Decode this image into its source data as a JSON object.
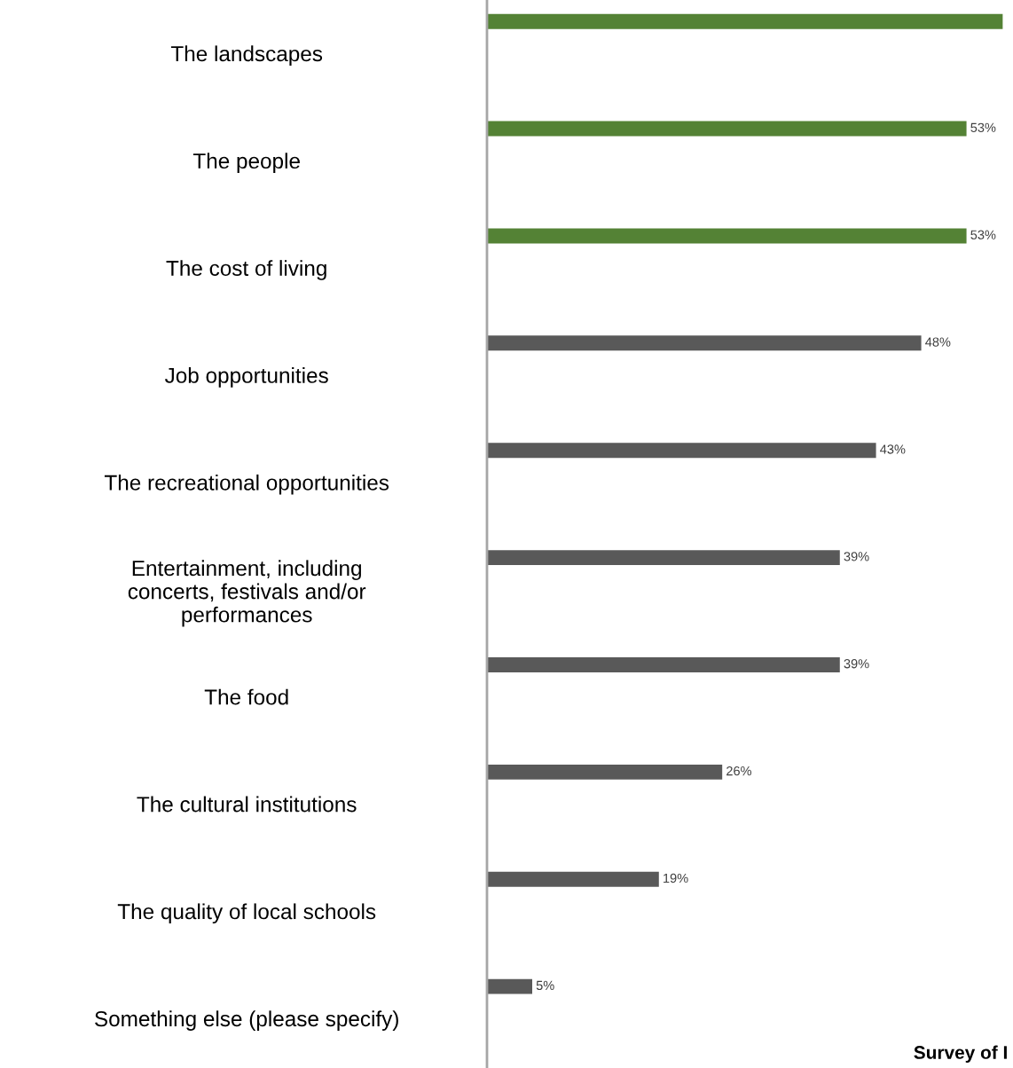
{
  "chart_data": {
    "type": "bar",
    "orientation": "horizontal",
    "categories": [
      "The landscapes",
      "The people",
      "The cost of living",
      "Job opportunities",
      "The recreational opportunities",
      "Entertainment, including\nconcerts, festivals and/or\nperformances",
      "The food",
      "The cultural institutions",
      "The quality of local schools",
      "Something else (please specify)"
    ],
    "values": [
      57,
      53,
      53,
      48,
      43,
      39,
      39,
      26,
      19,
      5
    ],
    "colors": [
      "#548235",
      "#548235",
      "#548235",
      "#595959",
      "#595959",
      "#595959",
      "#595959",
      "#595959",
      "#595959",
      "#595959"
    ],
    "value_labels": [
      null,
      "53%",
      "53%",
      "48%",
      "43%",
      "39%",
      "39%",
      "26%",
      "19%",
      "5%"
    ],
    "tick_labels": "y",
    "grid": false,
    "legend": false,
    "annotations": [
      "Survey of I"
    ]
  }
}
